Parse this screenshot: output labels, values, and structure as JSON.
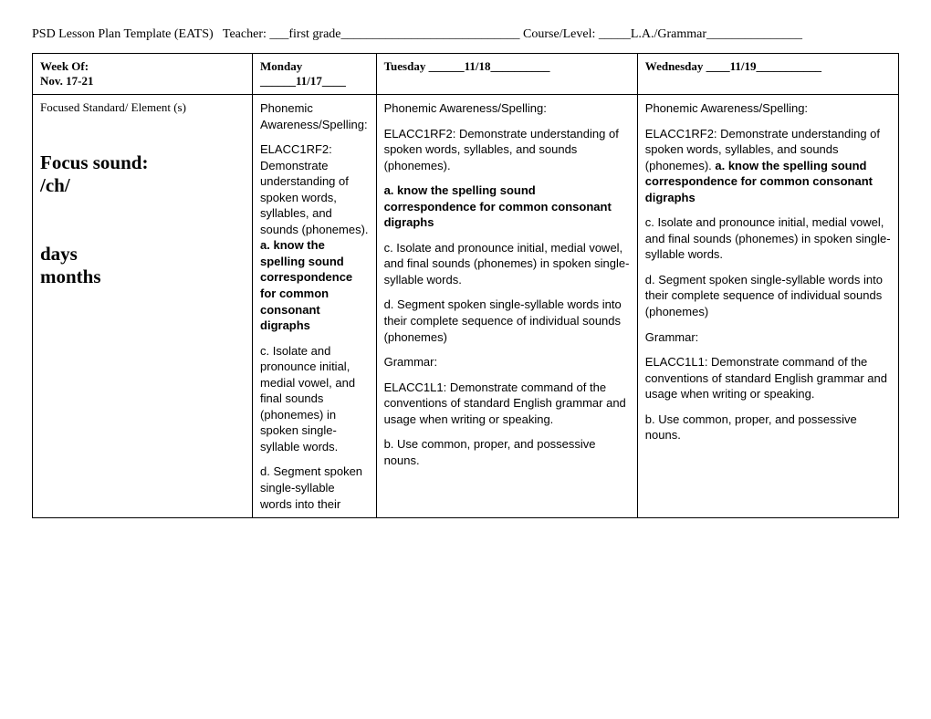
{
  "header": {
    "template_name": "PSD Lesson Plan Template (EATS)",
    "teacher_label": "Teacher:",
    "teacher_value": "___first grade____________________________",
    "course_label": "Course/Level:",
    "course_value": "_____L.A./Grammar_______________"
  },
  "columns": {
    "week_label": "Week Of:",
    "week_value": "Nov. 17-21",
    "monday": "Monday ______11/17____",
    "tuesday": "Tuesday ______11/18__________",
    "wednesday": "Wednesday ____11/19___________"
  },
  "row_label": {
    "focused_standard": "Focused Standard/ Element (s)",
    "focus_sound_label": "Focus sound:",
    "focus_sound_value": "/ch/",
    "words_line1": "days",
    "words_line2": "months"
  },
  "monday_cell": {
    "p1": "Phonemic Awareness/Spelling:",
    "p2a": "ELACC1RF2: Demonstrate understanding of spoken words, syllables, and sounds (phonemes). ",
    "p2b": "a. know the spelling sound correspondence for common consonant digraphs",
    "p3": "c. Isolate and pronounce initial, medial vowel, and final sounds (phonemes) in spoken single-syllable words.",
    "p4": "d. Segment spoken single-syllable words into their"
  },
  "tuesday_cell": {
    "p1": "Phonemic Awareness/Spelling:",
    "p2": "ELACC1RF2: Demonstrate understanding of spoken words, syllables, and sounds (phonemes).",
    "p3": "a. know the spelling sound correspondence for common consonant digraphs",
    "p4": "c. Isolate and pronounce initial, medial vowel, and final sounds (phonemes) in spoken single-syllable words.",
    "p5": "d. Segment spoken single-syllable words into their complete sequence of individual sounds (phonemes)",
    "p6": "Grammar:",
    "p7": "ELACC1L1: Demonstrate command of the conventions of standard English grammar and usage when writing or speaking.",
    "p8": "b. Use common, proper, and possessive nouns."
  },
  "wednesday_cell": {
    "p1": "Phonemic Awareness/Spelling:",
    "p2a": "ELACC1RF2: Demonstrate understanding of spoken words, syllables, and sounds (phonemes).  ",
    "p2b": "a. know the spelling sound correspondence for common consonant digraphs",
    "p3": "c. Isolate and pronounce initial, medial vowel, and final sounds (phonemes) in spoken single-syllable words.",
    "p4": "d. Segment spoken single-syllable words into their complete sequence of individual sounds (phonemes)",
    "p5": "Grammar:",
    "p6": "ELACC1L1: Demonstrate command of the conventions of standard English grammar and usage when writing or speaking.",
    "p7": "b. Use common, proper, and possessive nouns."
  }
}
